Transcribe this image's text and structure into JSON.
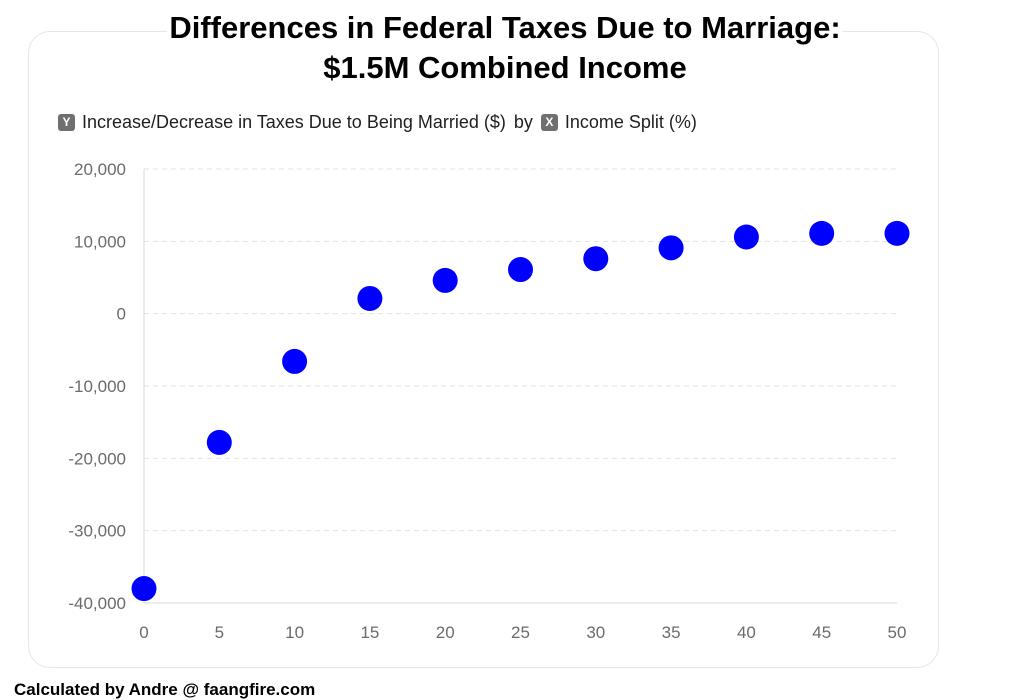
{
  "title_line_1": "Differences in Federal Taxes Due to Marriage:",
  "title_line_2": "$1.5M Combined Income",
  "axis_description": {
    "y_badge": "Y",
    "y_label": "Increase/Decrease in Taxes Due to Being Married ($)",
    "connector": "by",
    "x_badge": "X",
    "x_label": "Income Split (%)"
  },
  "credit": "Calculated by Andre @ faangfire.com",
  "colors": {
    "point": "#0000ff",
    "gridline": "#e3e3e3",
    "axis": "#d9d9d9",
    "tick_text": "#6b6b6b"
  },
  "chart_data": {
    "type": "scatter",
    "title": "Differences in Federal Taxes Due to Marriage: $1.5M Combined Income",
    "xlabel": "Income Split (%)",
    "ylabel": "Increase/Decrease in Taxes Due to Being Married ($)",
    "x": [
      0,
      5,
      10,
      15,
      20,
      25,
      30,
      35,
      40,
      45,
      50
    ],
    "y": [
      -38000,
      -17800,
      -6600,
      2100,
      4600,
      6100,
      7600,
      9100,
      10600,
      11100,
      11100
    ],
    "xlim": [
      0,
      50
    ],
    "ylim": [
      -40000,
      20000
    ],
    "x_ticks": [
      0,
      5,
      10,
      15,
      20,
      25,
      30,
      35,
      40,
      45,
      50
    ],
    "x_tick_labels": [
      "0",
      "5",
      "10",
      "15",
      "20",
      "25",
      "30",
      "35",
      "40",
      "45",
      "50"
    ],
    "y_ticks": [
      20000,
      10000,
      0,
      -10000,
      -20000,
      -30000,
      -40000
    ],
    "y_tick_labels": [
      "20,000",
      "10,000",
      "0",
      "-10,000",
      "-20,000",
      "-30,000",
      "-40,000"
    ],
    "grid": "horizontal dashed",
    "legend": "none"
  }
}
